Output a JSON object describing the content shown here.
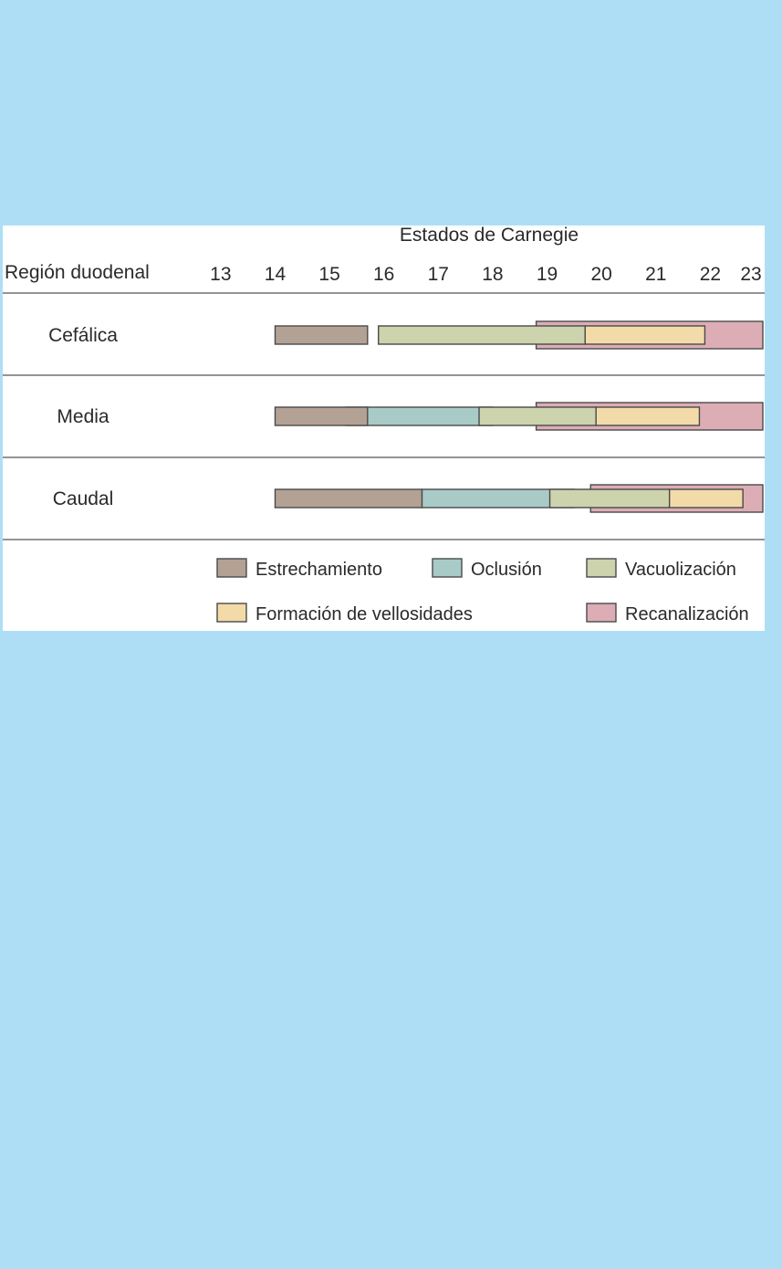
{
  "chart_data": {
    "type": "gantt",
    "title": "Estados de Carnegie",
    "row_header": "Región duodenal",
    "x_ticks": [
      13,
      14,
      15,
      16,
      17,
      18,
      19,
      20,
      21,
      22,
      23
    ],
    "xlim": [
      12.6,
      23.0
    ],
    "rows": [
      {
        "label": "Cefálica",
        "bars": [
          {
            "phase": "recanalizacion",
            "start": 18.8,
            "end": 23.0
          },
          {
            "phase": "estrechamiento",
            "start": 14.0,
            "end": 15.7
          },
          {
            "phase": "vacuolizacion",
            "start": 15.9,
            "end": 19.7
          },
          {
            "phase": "vellosidades",
            "start": 19.7,
            "end": 21.9
          }
        ]
      },
      {
        "label": "Media",
        "bars": [
          {
            "phase": "recanalizacion",
            "start": 18.8,
            "end": 23.0
          },
          {
            "phase": "oclusion",
            "start": 15.3,
            "end": 18.0
          },
          {
            "phase": "estrechamiento",
            "start": 14.0,
            "end": 15.7
          },
          {
            "phase": "vacuolizacion",
            "start": 17.75,
            "end": 19.9
          },
          {
            "phase": "vellosidades",
            "start": 19.9,
            "end": 21.8
          }
        ]
      },
      {
        "label": "Caudal",
        "bars": [
          {
            "phase": "recanalizacion",
            "start": 19.8,
            "end": 23.0
          },
          {
            "phase": "oclusion",
            "start": 16.7,
            "end": 19.5
          },
          {
            "phase": "vacuolizacion",
            "start": 19.05,
            "end": 21.25
          },
          {
            "phase": "estrechamiento",
            "start": 14.0,
            "end": 16.7
          },
          {
            "phase": "vellosidades",
            "start": 21.25,
            "end": 22.6
          }
        ]
      }
    ],
    "legend": [
      {
        "key": "estrechamiento",
        "label": "Estrechamiento",
        "color": "#b3a194"
      },
      {
        "key": "oclusion",
        "label": "Oclusión",
        "color": "#a9cbc8"
      },
      {
        "key": "vacuolizacion",
        "label": "Vacuolización",
        "color": "#ccd3ad"
      },
      {
        "key": "vellosidades",
        "label": "Formación de vellosidades",
        "color": "#f2dba9"
      },
      {
        "key": "recanalizacion",
        "label": "Recanalización",
        "color": "#ddadb6"
      }
    ],
    "legend_position": "bottom",
    "grid": false
  }
}
